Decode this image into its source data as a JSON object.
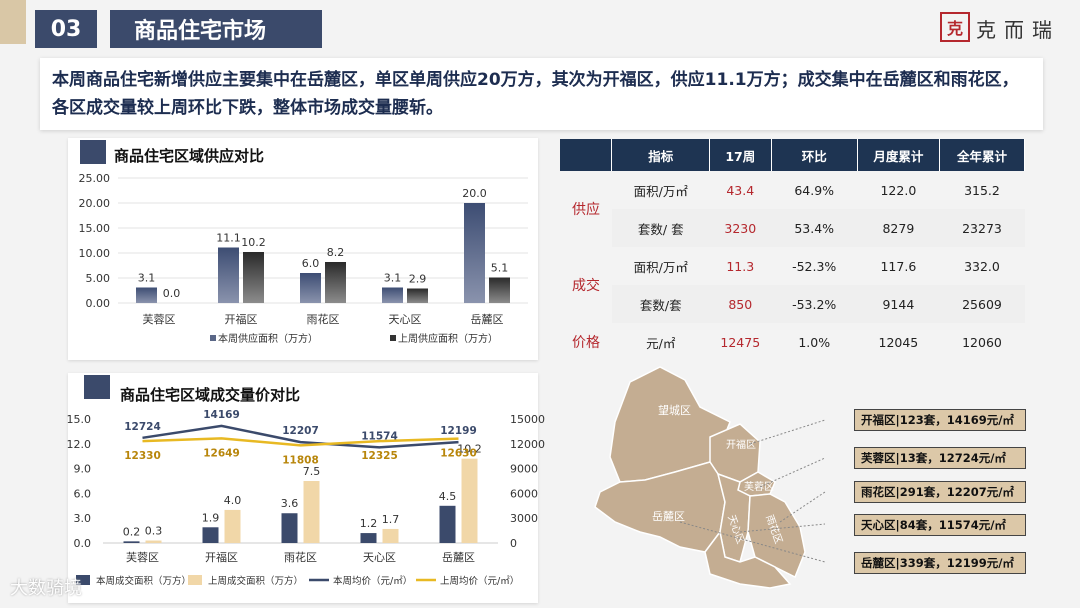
{
  "header": {
    "section_number": "03",
    "section_title": "商品住宅市场",
    "logo_mark": "克",
    "logo_text": "克而瑞"
  },
  "summary_text": "本周商品住宅新增供应主要集中在岳麓区，单区单周供应20万方，其次为开福区，供应11.1万方；成交集中在岳麓区和雨花区，各区成交量较上周环比下跌，整体市场成交量腰斩。",
  "supply_chart": {
    "title": "商品住宅区域供应对比",
    "chart_data": {
      "type": "bar",
      "categories": [
        "芙蓉区",
        "开福区",
        "雨花区",
        "天心区",
        "岳麓区"
      ],
      "series": [
        {
          "name": "本周供应面积（万方）",
          "values": [
            3.1,
            11.1,
            6.0,
            3.1,
            20.0
          ],
          "labels": [
            "3.1",
            "11.1",
            "6.0",
            "3.1",
            "20.0"
          ]
        },
        {
          "name": "上周供应面积（万方）",
          "values": [
            0.0,
            10.2,
            8.2,
            2.9,
            5.1
          ],
          "labels": [
            "0.0",
            "10.2",
            "8.2",
            "2.9",
            "5.1"
          ]
        }
      ],
      "yticks": [
        "25.00",
        "20.00",
        "15.00",
        "10.00",
        "5.00",
        "0.00"
      ],
      "ylim": [
        0,
        25
      ]
    }
  },
  "deal_chart": {
    "title": "商品住宅区域成交量价对比",
    "chart_data": {
      "type": "bar",
      "categories": [
        "芙蓉区",
        "开福区",
        "雨花区",
        "天心区",
        "岳麓区"
      ],
      "series": [
        {
          "name": "本周成交面积（万方）",
          "values": [
            0.2,
            1.9,
            3.6,
            1.2,
            4.5
          ],
          "labels": [
            "0.2",
            "1.9",
            "3.6",
            "1.2",
            "4.5"
          ]
        },
        {
          "name": "上周成交面积（万方）",
          "values": [
            0.3,
            4.0,
            7.5,
            1.7,
            10.2
          ],
          "labels": [
            "0.3",
            "4.0",
            "7.5",
            "1.7",
            "10.2"
          ]
        },
        {
          "name": "本周均价（元/㎡）",
          "type": "line",
          "values": [
            12724,
            14169,
            12207,
            11574,
            12199
          ],
          "labels": [
            "12724",
            "14169",
            "12207",
            "11574",
            "12199"
          ]
        },
        {
          "name": "上周均价（元/㎡）",
          "type": "line",
          "values": [
            12330,
            12649,
            11808,
            12325,
            12630
          ],
          "labels": [
            "12330",
            "12649",
            "11808",
            "12325",
            "12630"
          ]
        }
      ],
      "yticks_left": [
        "15.0",
        "12.0",
        "9.0",
        "6.0",
        "3.0",
        "0.0"
      ],
      "yticks_right": [
        "15000",
        "12000",
        "9000",
        "6000",
        "3000",
        "0"
      ],
      "ylim_left": [
        0,
        15
      ],
      "ylim_right": [
        0,
        15000
      ]
    }
  },
  "table": {
    "headers": [
      "指标",
      "17周",
      "环比",
      "月度累计",
      "全年累计"
    ],
    "groups": {
      "supply": "供应",
      "deal": "成交",
      "price": "价格"
    },
    "rows": [
      {
        "unit": "面积/万㎡",
        "week": "43.4",
        "change": "64.9%",
        "month": "122.0",
        "year": "315.2"
      },
      {
        "unit": "套数/ 套",
        "week": "3230",
        "change": "53.4%",
        "month": "8279",
        "year": "23273"
      },
      {
        "unit": "面积/万㎡",
        "week": "11.3",
        "change": "-52.3%",
        "month": "117.6",
        "year": "332.0"
      },
      {
        "unit": "套数/套",
        "week": "850",
        "change": "-53.2%",
        "month": "9144",
        "year": "25609"
      },
      {
        "unit": "元/㎡",
        "week": "12475",
        "change": "1.0%",
        "month": "12045",
        "year": "12060"
      }
    ]
  },
  "map": {
    "districts": [
      "望城区",
      "开福区",
      "芙蓉区",
      "岳麓区",
      "天心区",
      "雨花区"
    ],
    "labels": [
      "开福区|123套，14169元/㎡",
      "芙蓉区|13套，12724元/㎡",
      "雨花区|291套，12207元/㎡",
      "天心区|84套，11574元/㎡",
      "岳麓区|339套，12199元/㎡"
    ]
  },
  "watermark": "大数骑境",
  "colors": {
    "navy": "#3b4a6b",
    "tan": "#d9c7a6",
    "gold": "#e8b923",
    "red": "#b5282e",
    "map": "#c4ad92"
  }
}
